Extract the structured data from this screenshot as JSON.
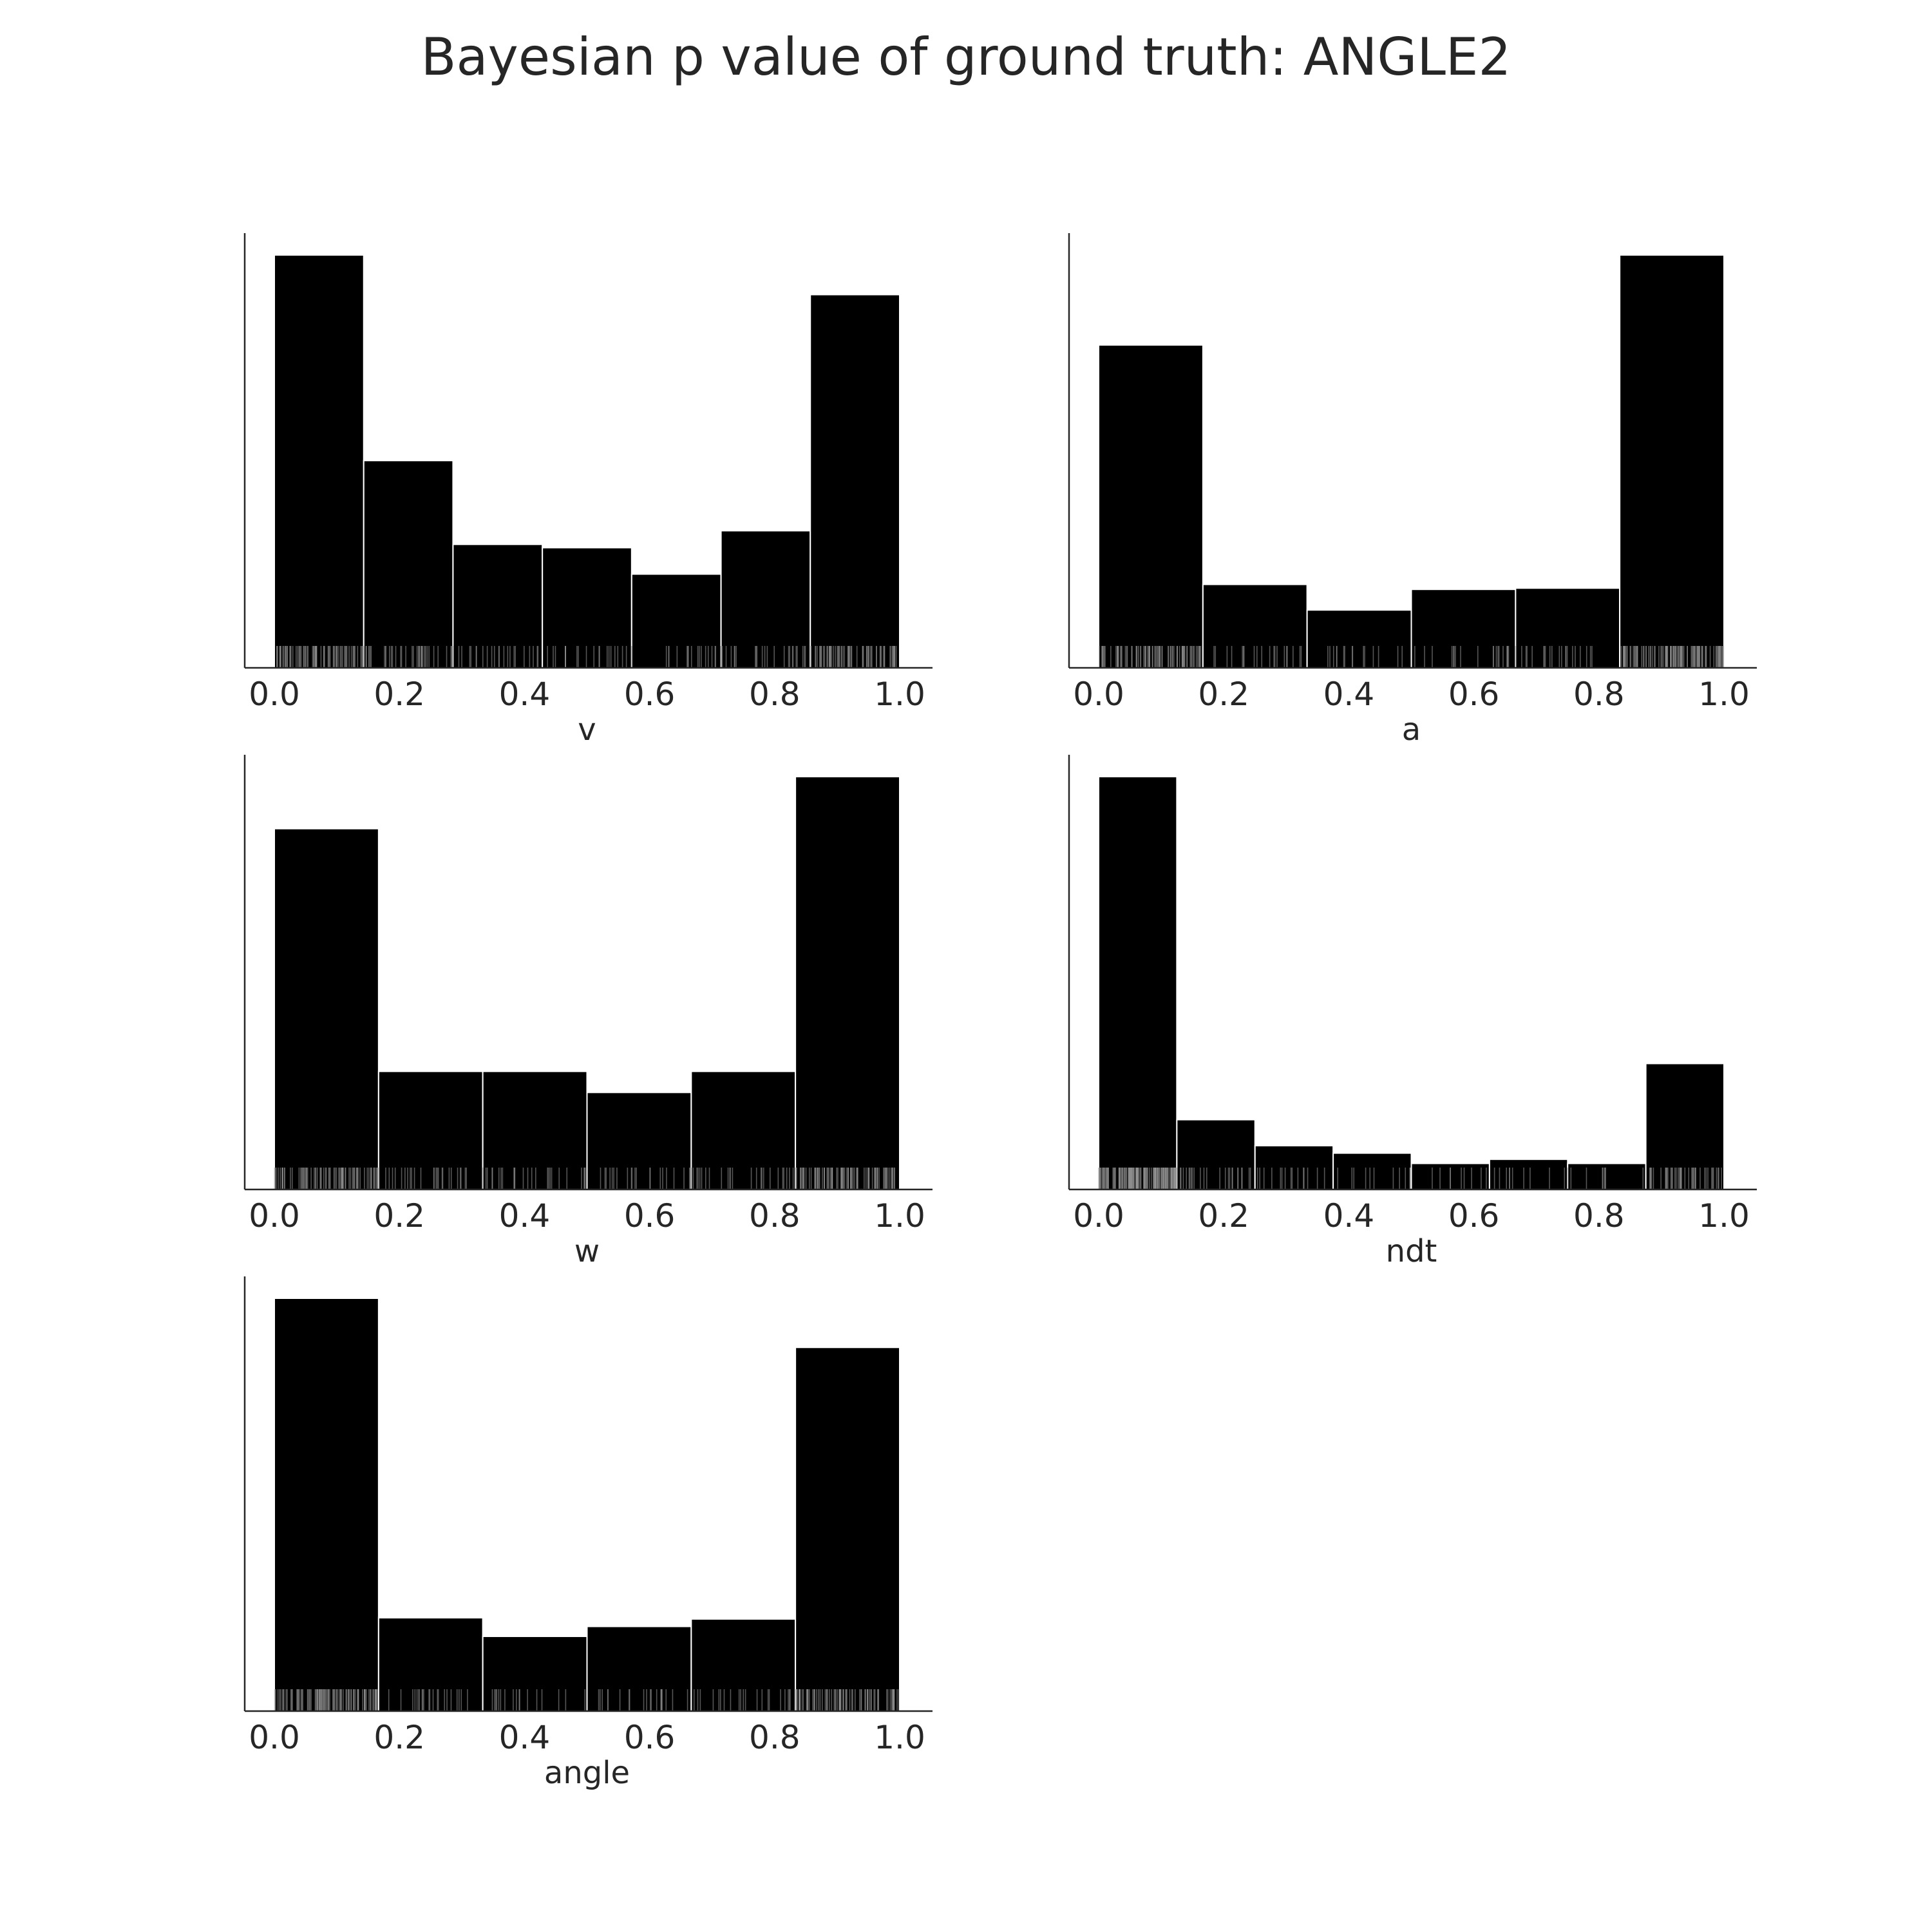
{
  "title": "Bayesian p value of ground truth: ANGLE2",
  "chart_data": [
    {
      "type": "bar",
      "xlabel": "v",
      "xlim": [
        0.0,
        1.0
      ],
      "x_ticks": [
        "0.0",
        "0.2",
        "0.4",
        "0.6",
        "0.8",
        "1.0"
      ],
      "bin_edges": [
        0.0,
        0.1429,
        0.2857,
        0.4286,
        0.5714,
        0.7143,
        0.8571,
        1.0
      ],
      "values": [
        100,
        50.2,
        29.9,
        29.1,
        22.7,
        33.2,
        90.4
      ],
      "rug": true
    },
    {
      "type": "bar",
      "xlabel": "a",
      "xlim": [
        0.0,
        1.0
      ],
      "x_ticks": [
        "0.0",
        "0.2",
        "0.4",
        "0.6",
        "0.8",
        "1.0"
      ],
      "bin_edges": [
        0.0,
        0.1667,
        0.3333,
        0.5,
        0.6667,
        0.8333,
        1.0
      ],
      "values": [
        78.2,
        20.2,
        14.0,
        19.0,
        19.3,
        100
      ],
      "rug": true
    },
    {
      "type": "bar",
      "xlabel": "w",
      "xlim": [
        0.0,
        1.0
      ],
      "x_ticks": [
        "0.0",
        "0.2",
        "0.4",
        "0.6",
        "0.8",
        "1.0"
      ],
      "bin_edges": [
        0.0,
        0.1667,
        0.3333,
        0.5,
        0.6667,
        0.8333,
        1.0
      ],
      "values": [
        87.4,
        28.6,
        28.6,
        23.5,
        28.6,
        100
      ],
      "rug": true
    },
    {
      "type": "bar",
      "xlabel": "ndt",
      "xlim": [
        0.0,
        1.0
      ],
      "x_ticks": [
        "0.0",
        "0.2",
        "0.4",
        "0.6",
        "0.8",
        "1.0"
      ],
      "bin_edges": [
        0.0,
        0.125,
        0.25,
        0.375,
        0.5,
        0.625,
        0.75,
        0.875,
        1.0
      ],
      "values": [
        100,
        16.9,
        10.6,
        8.8,
        6.3,
        7.3,
        6.3,
        30.5
      ],
      "rug": true
    },
    {
      "type": "bar",
      "xlabel": "angle",
      "xlim": [
        0.0,
        1.0
      ],
      "x_ticks": [
        "0.0",
        "0.2",
        "0.4",
        "0.6",
        "0.8",
        "1.0"
      ],
      "bin_edges": [
        0.0,
        0.1667,
        0.3333,
        0.5,
        0.6667,
        0.8333,
        1.0
      ],
      "values": [
        100,
        22.6,
        18.1,
        20.5,
        22.3,
        88.1
      ],
      "rug": true
    }
  ]
}
